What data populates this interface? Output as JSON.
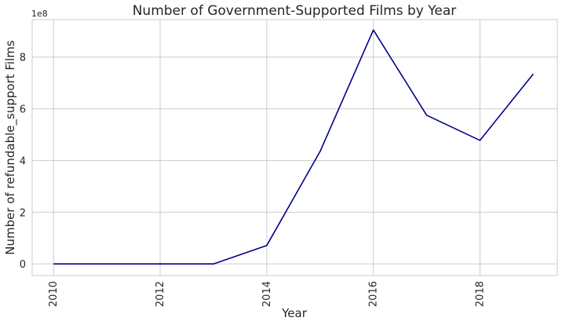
{
  "chart_data": {
    "type": "line",
    "title": "Number of Government-Supported Films by Year",
    "xlabel": "Year",
    "ylabel": "Number of refundable_support Films",
    "y_offset_label": "1e8",
    "xlim": [
      2009.6,
      2019.45
    ],
    "ylim": [
      -0.45,
      9.45
    ],
    "y_scale_multiplier": 100000000,
    "x_ticks": [
      2010,
      2012,
      2014,
      2016,
      2018
    ],
    "x_tick_labels": [
      "2010",
      "2012",
      "2014",
      "2016",
      "2018"
    ],
    "y_ticks": [
      0,
      2,
      4,
      6,
      8
    ],
    "y_tick_labels": [
      "0",
      "2",
      "4",
      "6",
      "8"
    ],
    "grid": true,
    "series": [
      {
        "color": "#00008b",
        "x": [
          2010,
          2011,
          2012,
          2013,
          2014,
          2015,
          2016,
          2017,
          2018,
          2019
        ],
        "y": [
          0,
          0,
          0,
          0,
          0.71,
          4.35,
          9.05,
          5.75,
          4.78,
          7.35
        ]
      }
    ]
  }
}
